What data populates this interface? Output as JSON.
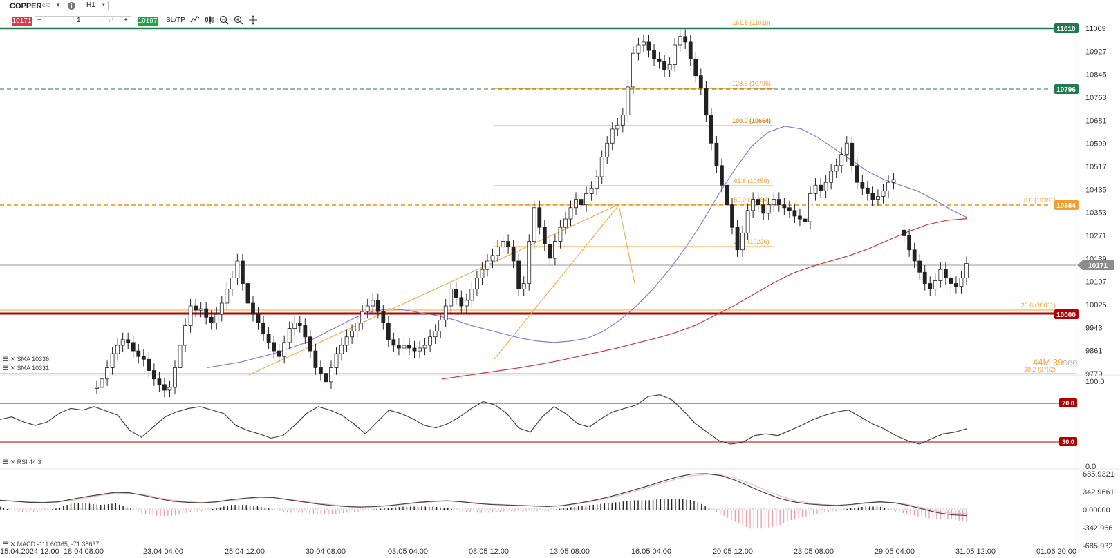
{
  "toolbar": {
    "symbol": "COPPER",
    "symbol_type": "CFD",
    "timeframe": "H1",
    "sell_price": "10171",
    "buy_price": "10197",
    "quantity": "1",
    "minus": "−",
    "plus": "+",
    "swap_glyph": "⇄",
    "sltp_label": "SL/TP",
    "info_glyph": "i",
    "caret_glyph": "▾"
  },
  "colors": {
    "bull": "#ffffff",
    "bear": "#222222",
    "sma_fast": "#8a7ad8",
    "sma_slow": "#c43a3a",
    "fib": "#f0a030",
    "price_line": "#9a9a9a",
    "resistance_green": "#1f7a4d",
    "support_red": "#b00000"
  },
  "levels": {
    "top_resistance": "11010",
    "dashed_resistance": "10796",
    "orange_level": "10384",
    "current_price": "10171",
    "support": "10000"
  },
  "fib_labels": {
    "f1618": "161.8 (11010)",
    "f1236": "123.6 (10796)",
    "f1000": "100.0 (10664)",
    "f618": "61.8 (10450)",
    "f500": "50.0 (10384)",
    "f236": "23.6 (10236)",
    "f0": "0.0 (10381)",
    "f236b": "23.6 (10011)",
    "f382": "38.2 (9782)"
  },
  "legend": {
    "sma1": "SMA 10336",
    "sma2": "SMA 10331",
    "rsi": "RSI 44.3",
    "macd": "MACD -111.60365, -71.38637"
  },
  "countdown": {
    "minutes": "44M 39",
    "unit": "seg"
  },
  "chart_data": [
    {
      "type": "candlestick",
      "title": "COPPER H1",
      "ylim": [
        9779,
        11050
      ],
      "y_ticks": [
        "11009",
        "10927",
        "10845",
        "10763",
        "10681",
        "10599",
        "10517",
        "10435",
        "10353",
        "10271",
        "10189",
        "10107",
        "10025",
        "9943",
        "9861",
        "9779"
      ],
      "x_ticks": [
        "15.04.2024 12:00",
        "18.04 08:00",
        "23.04 04:00",
        "25.04 12:00",
        "30.04 08:00",
        "03.05 04:00",
        "08.05 12:00",
        "13.05 08:00",
        "16.05 04:00",
        "20.05 12:00",
        "23.05 08:00",
        "29.05 04:00",
        "31.05 12:00",
        "01.06 20:00"
      ],
      "close_path": [
        9730,
        9760,
        9800,
        9850,
        9880,
        9900,
        9890,
        9860,
        9840,
        9830,
        9790,
        9760,
        9740,
        9720,
        9730,
        9800,
        9880,
        9950,
        10020,
        10005,
        10010,
        9980,
        9960,
        9990,
        10030,
        10080,
        10120,
        10180,
        10100,
        10030,
        9990,
        9960,
        9920,
        9890,
        9860,
        9840,
        9890,
        9940,
        9960,
        9950,
        9910,
        9860,
        9800,
        9780,
        9750,
        9800,
        9850,
        9880,
        9910,
        9930,
        9960,
        10000,
        10020,
        10040,
        10000,
        9960,
        9900,
        9880,
        9870,
        9880,
        9870,
        9860,
        9870,
        9880,
        9910,
        9930,
        9970,
        10020,
        10080,
        10050,
        10020,
        10040,
        10080,
        10120,
        10150,
        10180,
        10200,
        10230,
        10250,
        10230,
        10180,
        10080,
        10100,
        10250,
        10370,
        10300,
        10240,
        10190,
        10250,
        10300,
        10330,
        10370,
        10400,
        10380,
        10420,
        10440,
        10480,
        10550,
        10600,
        10650,
        10664,
        10700,
        10800,
        10920,
        10950,
        10960,
        10930,
        10900,
        10890,
        10860,
        10880,
        10950,
        10980,
        10960,
        10900,
        10840,
        10796,
        10700,
        10600,
        10520,
        10450,
        10380,
        10300,
        10220,
        10280,
        10360,
        10400,
        10380,
        10350,
        10380,
        10400,
        10380,
        10370,
        10360,
        10340,
        10330,
        10320,
        10420,
        10450,
        10430,
        10460,
        10500,
        10520,
        10560,
        10600,
        10520,
        10460,
        10440,
        10420,
        10400,
        10410,
        10430,
        10460,
        10470,
        null,
        10270,
        10220,
        10180,
        10140,
        10100,
        10080,
        10110,
        10150,
        10120,
        10100,
        10090,
        10120,
        10171
      ],
      "series": [
        {
          "name": "SMA 10336",
          "values": [
            9800,
            9810,
            9820,
            9835,
            9850,
            9870,
            9890,
            9920,
            9950,
            9980,
            10000,
            10010,
            10005,
            9995,
            9985,
            9970,
            9950,
            9935,
            9920,
            9905,
            9895,
            9890,
            9895,
            9905,
            9930,
            9970,
            10020,
            10080,
            10150,
            10230,
            10320,
            10420,
            10510,
            10590,
            10640,
            10660,
            10650,
            10620,
            10580,
            10540,
            10500,
            10470,
            10450,
            10430,
            10400,
            10365,
            10336
          ]
        },
        {
          "name": "SMA 10331",
          "values": [
            9760,
            9770,
            9780,
            9790,
            9800,
            9812,
            9825,
            9840,
            9855,
            9870,
            9888,
            9905,
            9925,
            9950,
            9985,
            10020,
            10060,
            10100,
            10135,
            10160,
            10180,
            10200,
            10225,
            10255,
            10285,
            10310,
            10325,
            10331
          ]
        }
      ]
    },
    {
      "type": "line",
      "title": "RSI 44.3",
      "ylim": [
        0,
        100
      ],
      "y_ticks": [
        "100.0",
        "70.0",
        "30.0",
        "0.0"
      ],
      "levels": [
        70,
        30
      ],
      "series": [
        {
          "name": "RSI 44.3",
          "values": [
            55,
            58,
            52,
            48,
            52,
            62,
            68,
            66,
            70,
            65,
            60,
            42,
            34,
            46,
            58,
            64,
            68,
            70,
            66,
            62,
            48,
            42,
            38,
            33,
            36,
            48,
            62,
            70,
            66,
            60,
            50,
            38,
            52,
            66,
            62,
            56,
            48,
            45,
            50,
            58,
            68,
            76,
            72,
            62,
            45,
            40,
            58,
            70,
            62,
            50,
            46,
            56,
            64,
            68,
            72,
            82,
            84,
            78,
            65,
            50,
            40,
            30,
            26,
            28,
            36,
            38,
            36,
            42,
            48,
            55,
            60,
            64,
            66,
            58,
            50,
            44,
            36,
            30,
            26,
            32,
            38,
            40,
            44
          ]
        }
      ]
    },
    {
      "type": "line",
      "title": "MACD -111.60365, -71.38637",
      "ylim": [
        -685.932,
        685.932
      ],
      "y_ticks": [
        "685.9321",
        "342.9661",
        "0.00000",
        "-342.966",
        "-685.932"
      ],
      "series": [
        {
          "name": "MACD",
          "values": [
            180,
            160,
            140,
            135,
            150,
            200,
            250,
            290,
            330,
            320,
            270,
            210,
            160,
            140,
            130,
            150,
            190,
            220,
            240,
            230,
            190,
            150,
            110,
            80,
            60,
            50,
            60,
            80,
            110,
            140,
            160,
            170,
            150,
            120,
            100,
            90,
            80,
            70,
            60,
            80,
            120,
            170,
            230,
            300,
            380,
            460,
            550,
            630,
            680,
            686,
            650,
            560,
            440,
            320,
            220,
            150,
            110,
            90,
            80,
            100,
            130,
            150,
            130,
            80,
            10,
            -60,
            -100,
            -111
          ]
        },
        {
          "name": "Signal",
          "values": [
            170,
            165,
            150,
            140,
            145,
            180,
            230,
            275,
            310,
            315,
            285,
            230,
            180,
            150,
            135,
            145,
            175,
            205,
            230,
            230,
            200,
            160,
            125,
            95,
            70,
            55,
            58,
            75,
            100,
            130,
            150,
            165,
            155,
            130,
            110,
            95,
            85,
            75,
            65,
            75,
            110,
            155,
            210,
            275,
            350,
            430,
            515,
            595,
            650,
            675,
            665,
            600,
            500,
            380,
            270,
            180,
            130,
            100,
            85,
            95,
            120,
            140,
            135,
            95,
            35,
            -30,
            -70,
            -71
          ]
        }
      ]
    }
  ]
}
